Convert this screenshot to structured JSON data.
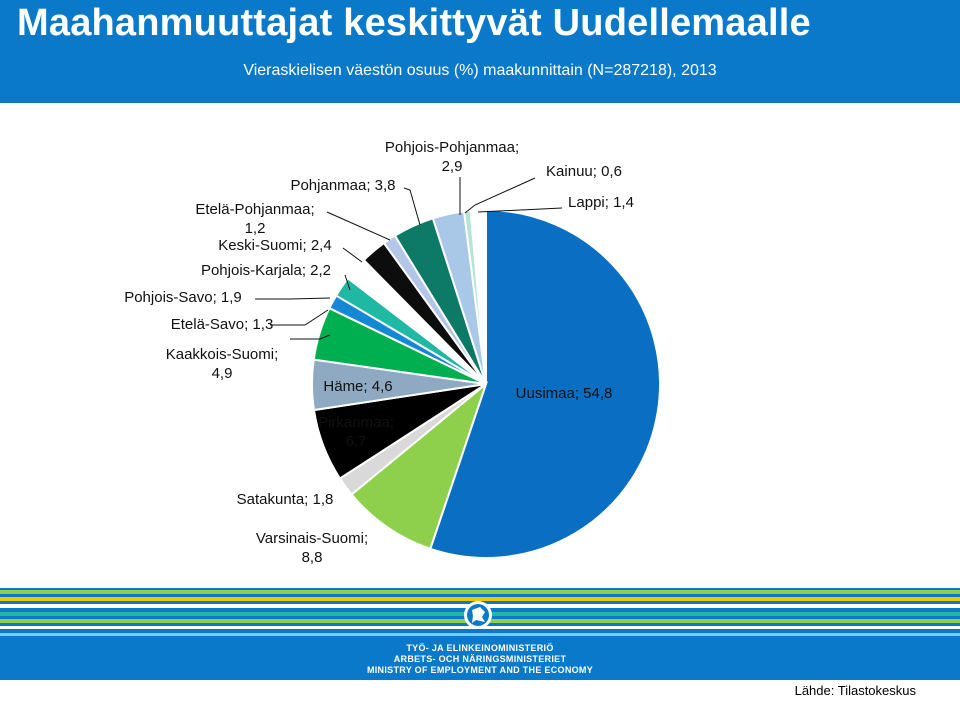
{
  "title": "Maahanmuuttajat keskittyvät Uudellemaalle",
  "subtitle": "Vieraskielisen väestön osuus (%) maakunnittain (N=287218), 2013",
  "chart_data": {
    "type": "pie",
    "slices": [
      {
        "name": "Uusimaa",
        "value": 54.8,
        "label": "Uusimaa; 54,8",
        "color": "#0a6fc2"
      },
      {
        "name": "Varsinais-Suomi",
        "value": 8.8,
        "label": "Varsinais-Suomi; 8,8",
        "color": "#8ed04b"
      },
      {
        "name": "Satakunta",
        "value": 1.8,
        "label": "Satakunta; 1,8",
        "color": "#d9d9d9"
      },
      {
        "name": "Pirkanmaa",
        "value": 6.7,
        "label": "Pirkanmaa; 6,7",
        "color": "#000000"
      },
      {
        "name": "Häme",
        "value": 4.6,
        "label": "Häme; 4,6",
        "color": "#8ea9c1"
      },
      {
        "name": "Kaakkois-Suomi",
        "value": 4.9,
        "label": "Kaakkois-Suomi; 4,9",
        "color": "#00b050"
      },
      {
        "name": "Etelä-Savo",
        "value": 1.3,
        "label": "Etelä-Savo; 1,3",
        "color": "#1588d5"
      },
      {
        "name": "Pohjois-Savo",
        "value": 1.9,
        "label": "Pohjois-Savo; 1,9",
        "color": "#1fb8a3"
      },
      {
        "name": "Pohjois-Karjala",
        "value": 2.2,
        "label": "Pohjois-Karjala; 2,2",
        "color": "#ffffff"
      },
      {
        "name": "Keski-Suomi",
        "value": 2.4,
        "label": "Keski-Suomi; 2,4",
        "color": "#0d0d0d"
      },
      {
        "name": "Etelä-Pohjanmaa",
        "value": 1.2,
        "label": "Etelä-Pohjanmaa; 1,2",
        "color": "#b4c6e7"
      },
      {
        "name": "Pohjanmaa",
        "value": 3.8,
        "label": "Pohjanmaa; 3,8",
        "color": "#0c7a66"
      },
      {
        "name": "Pohjois-Pohjanmaa",
        "value": 2.9,
        "label": "Pohjois-Pohjanmaa; 2,9",
        "color": "#a9c8e8"
      },
      {
        "name": "Kainuu",
        "value": 0.6,
        "label": "Kainuu; 0,6",
        "color": "#b7e3d6"
      },
      {
        "name": "Lappi",
        "value": 1.4,
        "label": "Lappi; 1,4",
        "color": "#ffffff"
      }
    ]
  },
  "colors": {
    "header": "#0a79c9",
    "footer_stripes": [
      "#0a79c9",
      "#8ed04b",
      "#f5c400",
      "#1fb8a3",
      "#0a79c9"
    ]
  },
  "ministry": {
    "emblem": "lion-emblem",
    "line1": "TYÖ- JA ELINKEINOMINISTERIÖ",
    "line2": "ARBETS- OCH NÄRINGSMINISTERIET",
    "line3": "MINISTRY OF EMPLOYMENT AND THE ECONOMY"
  },
  "source": "Lähde: Tilastokeskus"
}
